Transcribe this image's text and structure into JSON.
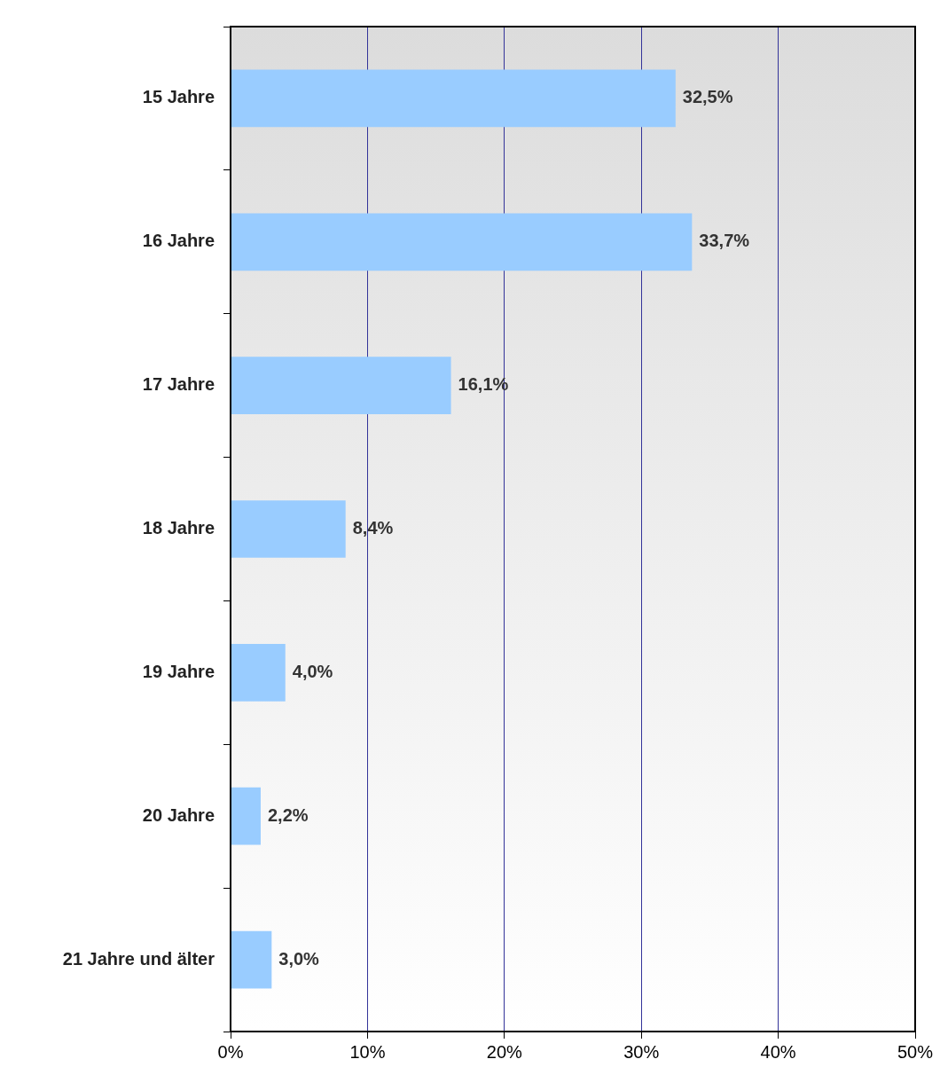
{
  "chart_data": {
    "type": "bar",
    "orientation": "horizontal",
    "categories": [
      "15 Jahre",
      "16 Jahre",
      "17 Jahre",
      "18 Jahre",
      "19 Jahre",
      "20 Jahre",
      "21 Jahre und älter"
    ],
    "values": [
      32.5,
      33.7,
      16.1,
      8.4,
      4.0,
      2.2,
      3.0
    ],
    "value_labels": [
      "32,5%",
      "33,7%",
      "16,1%",
      "8,4%",
      "4,0%",
      "2,2%",
      "3,0%"
    ],
    "color": "#99ccff",
    "xlim": [
      0,
      50
    ],
    "xticks": [
      {
        "value": 0,
        "label": "0%"
      },
      {
        "value": 10,
        "label": "10%"
      },
      {
        "value": 20,
        "label": "20%"
      },
      {
        "value": 30,
        "label": "30%"
      },
      {
        "value": 40,
        "label": "40%"
      },
      {
        "value": 50,
        "label": "50%"
      }
    ],
    "grid": "x",
    "legend": false
  }
}
